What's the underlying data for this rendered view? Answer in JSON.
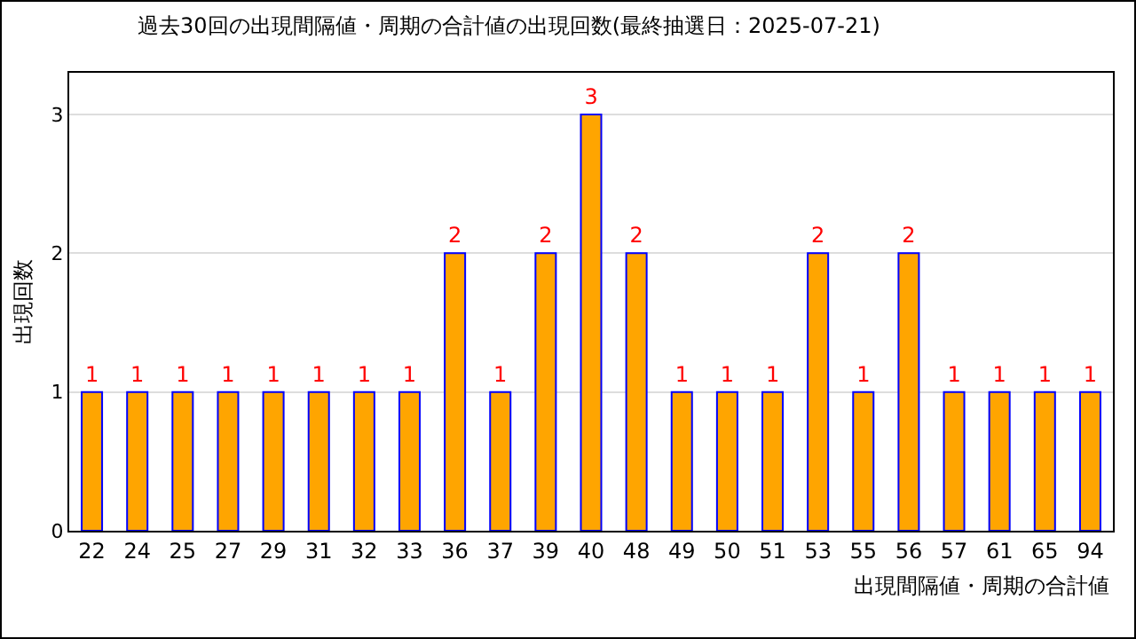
{
  "chart_data": {
    "type": "bar",
    "title": "過去30回の出現間隔値・周期の合計値の出現回数(最終抽選日：2025-07-21)",
    "xlabel": "出現間隔値・周期の合計値",
    "ylabel": "出現回数",
    "categories": [
      "22",
      "24",
      "25",
      "27",
      "29",
      "31",
      "32",
      "33",
      "36",
      "37",
      "39",
      "40",
      "48",
      "49",
      "50",
      "51",
      "53",
      "55",
      "56",
      "57",
      "61",
      "65",
      "94"
    ],
    "values": [
      1,
      1,
      1,
      1,
      1,
      1,
      1,
      1,
      2,
      1,
      2,
      3,
      2,
      1,
      1,
      1,
      2,
      1,
      2,
      1,
      1,
      1,
      1
    ],
    "color": "#ffa500",
    "ylim": [
      0,
      3.3
    ],
    "yticks": [
      0,
      1,
      2,
      3
    ],
    "grid": "y",
    "data_labels": true
  }
}
